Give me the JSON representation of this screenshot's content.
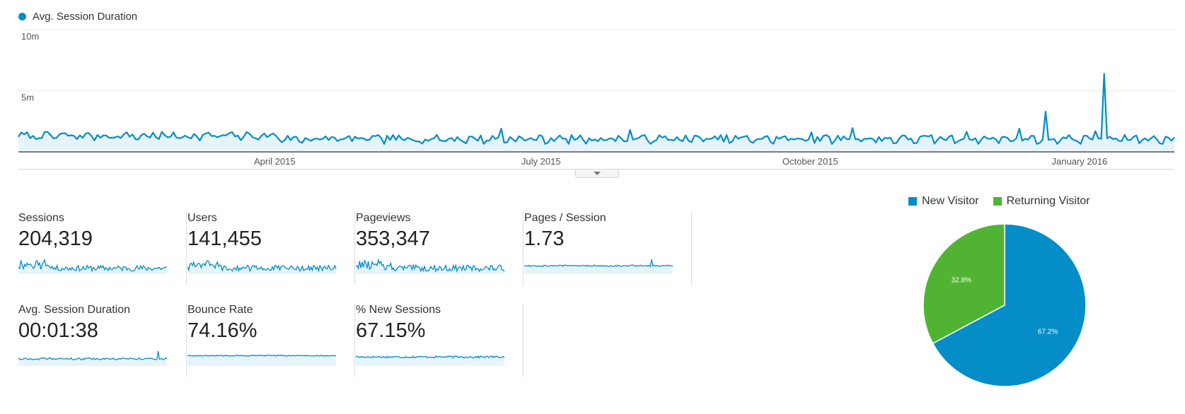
{
  "timeline": {
    "legend_label": "Avg. Session Duration",
    "color": "#058dc7",
    "y_ticks": [
      "10m",
      "5m"
    ],
    "x_ticks": [
      "April 2015",
      "July 2015",
      "October 2015",
      "January 2016"
    ],
    "chart_data": {
      "type": "line",
      "title": "",
      "series": [
        {
          "name": "Avg. Session Duration"
        }
      ],
      "ylabel": "",
      "ylim": [
        0,
        10
      ],
      "y_unit": "minutes",
      "x_range": [
        "2015-01-01",
        "2016-01-31"
      ],
      "grid": true,
      "legend": "top-left",
      "spikes": [
        {
          "date": "2015-06-15",
          "minutes": 1.9
        },
        {
          "date": "2015-07-29",
          "minutes": 1.8
        },
        {
          "date": "2015-09-29",
          "minutes": 1.6
        },
        {
          "date": "2015-10-13",
          "minutes": 1.95
        },
        {
          "date": "2015-11-21",
          "minutes": 1.65
        },
        {
          "date": "2015-12-09",
          "minutes": 1.9
        },
        {
          "date": "2015-12-18",
          "minutes": 3.3
        },
        {
          "date": "2016-01-04",
          "minutes": 1.7
        },
        {
          "date": "2016-01-07",
          "minutes": 6.4
        }
      ]
    }
  },
  "metrics": [
    {
      "label": "Sessions",
      "value": "204,319"
    },
    {
      "label": "Users",
      "value": "141,455"
    },
    {
      "label": "Pageviews",
      "value": "353,347"
    },
    {
      "label": "Pages / Session",
      "value": "1.73"
    },
    {
      "label": "Avg. Session Duration",
      "value": "00:01:38"
    },
    {
      "label": "Bounce Rate",
      "value": "74.16%"
    },
    {
      "label": "% New Sessions",
      "value": "67.15%"
    }
  ],
  "visitors": {
    "legend": [
      {
        "label": "New Visitor",
        "color": "#058dc7"
      },
      {
        "label": "Returning Visitor",
        "color": "#50b432"
      }
    ],
    "chart_data": {
      "type": "pie",
      "title": "",
      "categories": [
        "New Visitor",
        "Returning Visitor"
      ],
      "values": [
        67.2,
        32.8
      ],
      "labels": [
        "67.2%",
        "32.8%"
      ],
      "colors": [
        "#058dc7",
        "#50b432"
      ],
      "legend": "top"
    }
  }
}
